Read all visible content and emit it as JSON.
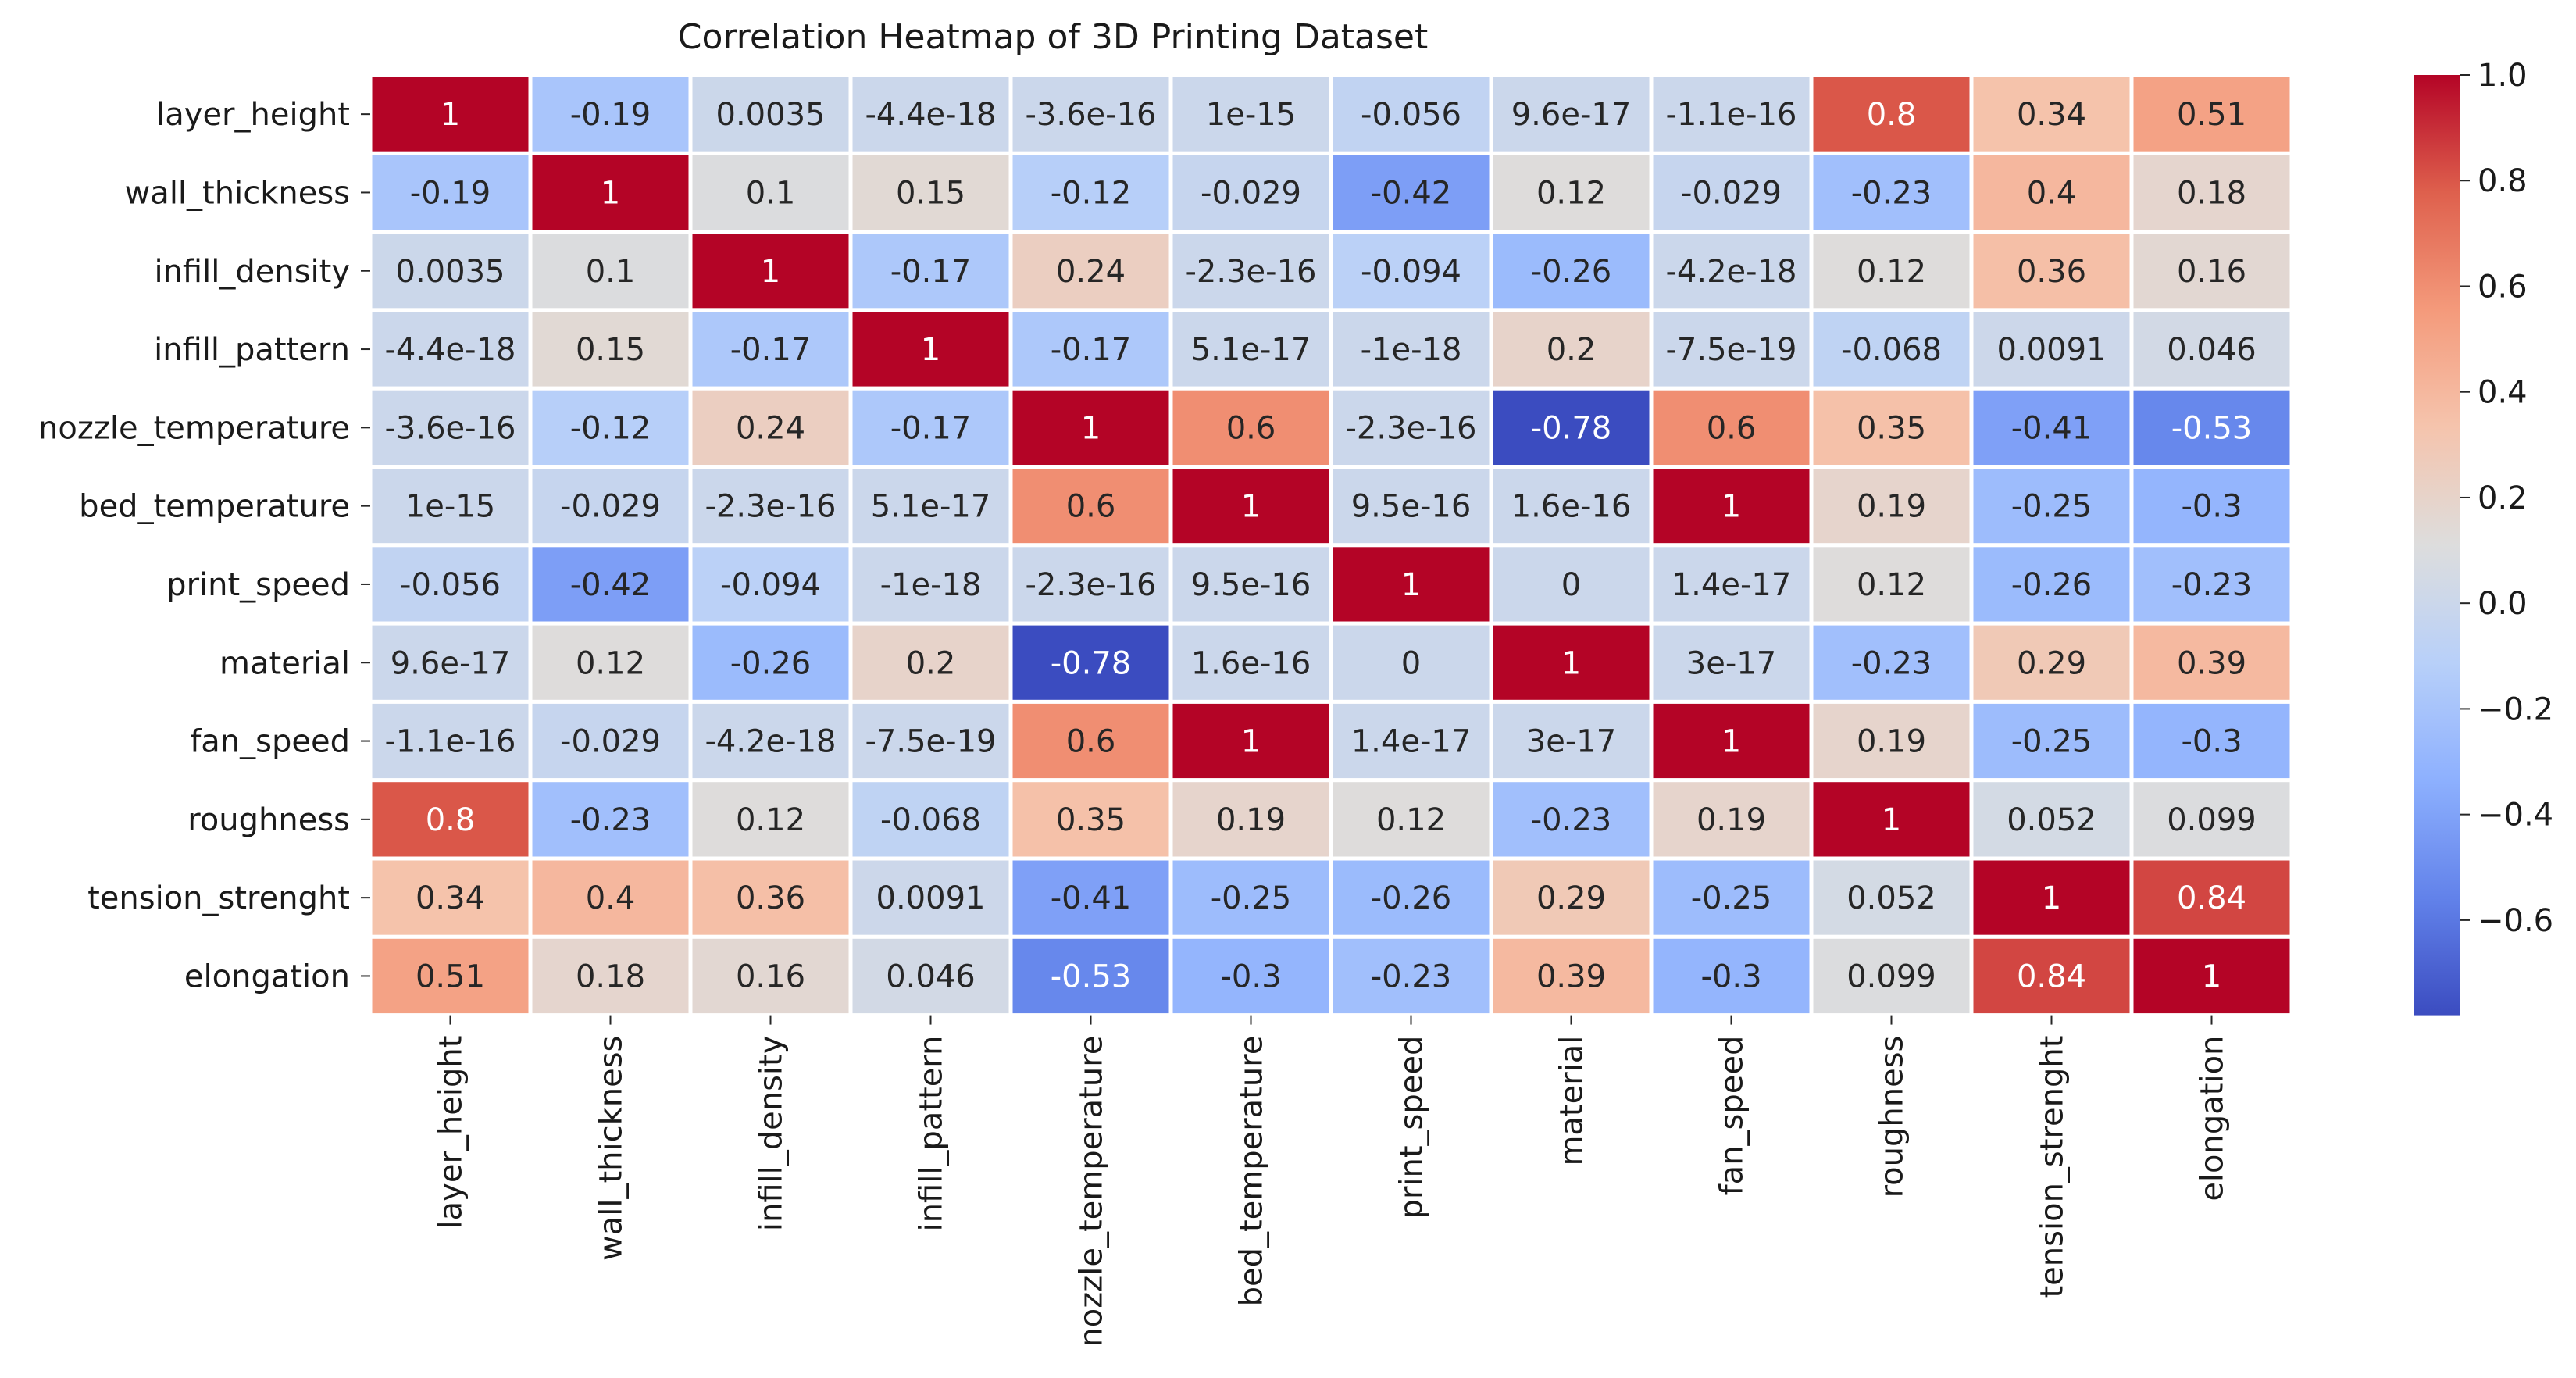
{
  "chart_data": {
    "type": "heatmap",
    "title": "Correlation Heatmap of 3D Printing Dataset",
    "xlabel": "",
    "ylabel": "",
    "rows": [
      "layer_height",
      "wall_thickness",
      "infill_density",
      "infill_pattern",
      "nozzle_temperature",
      "bed_temperature",
      "print_speed",
      "material",
      "fan_speed",
      "roughness",
      "tension_strenght",
      "elongation"
    ],
    "columns": [
      "layer_height",
      "wall_thickness",
      "infill_density",
      "infill_pattern",
      "nozzle_temperature",
      "bed_temperature",
      "print_speed",
      "material",
      "fan_speed",
      "roughness",
      "tension_strenght",
      "elongation"
    ],
    "values": [
      [
        1,
        -0.19,
        0.0035,
        -4.4e-18,
        -3.6e-16,
        1e-15,
        -0.056,
        9.6e-17,
        -1.1e-16,
        0.8,
        0.34,
        0.51
      ],
      [
        -0.19,
        1,
        0.1,
        0.15,
        -0.12,
        -0.029,
        -0.42,
        0.12,
        -0.029,
        -0.23,
        0.4,
        0.18
      ],
      [
        0.0035,
        0.1,
        1,
        -0.17,
        0.24,
        -2.3e-16,
        -0.094,
        -0.26,
        -4.2e-18,
        0.12,
        0.36,
        0.16
      ],
      [
        -4.4e-18,
        0.15,
        -0.17,
        1,
        -0.17,
        5.1e-17,
        -1e-18,
        0.2,
        -7.5e-19,
        -0.068,
        0.0091,
        0.046
      ],
      [
        -3.6e-16,
        -0.12,
        0.24,
        -0.17,
        1,
        0.6,
        -2.3e-16,
        -0.78,
        0.6,
        0.35,
        -0.41,
        -0.53
      ],
      [
        1e-15,
        -0.029,
        -2.3e-16,
        5.1e-17,
        0.6,
        1,
        9.5e-16,
        1.6e-16,
        1,
        0.19,
        -0.25,
        -0.3
      ],
      [
        -0.056,
        -0.42,
        -0.094,
        -1e-18,
        -2.3e-16,
        9.5e-16,
        1,
        0,
        1.4e-17,
        0.12,
        -0.26,
        -0.23
      ],
      [
        9.6e-17,
        0.12,
        -0.26,
        0.2,
        -0.78,
        1.6e-16,
        0,
        1,
        3e-17,
        -0.23,
        0.29,
        0.39
      ],
      [
        -1.1e-16,
        -0.029,
        -4.2e-18,
        -7.5e-19,
        0.6,
        1,
        1.4e-17,
        3e-17,
        1,
        0.19,
        -0.25,
        -0.3
      ],
      [
        0.8,
        -0.23,
        0.12,
        -0.068,
        0.35,
        0.19,
        0.12,
        -0.23,
        0.19,
        1,
        0.052,
        0.099
      ],
      [
        0.34,
        0.4,
        0.36,
        0.0091,
        -0.41,
        -0.25,
        -0.26,
        0.29,
        -0.25,
        0.052,
        1,
        0.84
      ],
      [
        0.51,
        0.18,
        0.16,
        0.046,
        -0.53,
        -0.3,
        -0.23,
        0.39,
        -0.3,
        0.099,
        0.84,
        1
      ]
    ],
    "annotations": [
      [
        "1",
        "-0.19",
        "0.0035",
        "-4.4e-18",
        "-3.6e-16",
        "1e-15",
        "-0.056",
        "9.6e-17",
        "-1.1e-16",
        "0.8",
        "0.34",
        "0.51"
      ],
      [
        "-0.19",
        "1",
        "0.1",
        "0.15",
        "-0.12",
        "-0.029",
        "-0.42",
        "0.12",
        "-0.029",
        "-0.23",
        "0.4",
        "0.18"
      ],
      [
        "0.0035",
        "0.1",
        "1",
        "-0.17",
        "0.24",
        "-2.3e-16",
        "-0.094",
        "-0.26",
        "-4.2e-18",
        "0.12",
        "0.36",
        "0.16"
      ],
      [
        "-4.4e-18",
        "0.15",
        "-0.17",
        "1",
        "-0.17",
        "5.1e-17",
        "-1e-18",
        "0.2",
        "-7.5e-19",
        "-0.068",
        "0.0091",
        "0.046"
      ],
      [
        "-3.6e-16",
        "-0.12",
        "0.24",
        "-0.17",
        "1",
        "0.6",
        "-2.3e-16",
        "-0.78",
        "0.6",
        "0.35",
        "-0.41",
        "-0.53"
      ],
      [
        "1e-15",
        "-0.029",
        "-2.3e-16",
        "5.1e-17",
        "0.6",
        "1",
        "9.5e-16",
        "1.6e-16",
        "1",
        "0.19",
        "-0.25",
        "-0.3"
      ],
      [
        "-0.056",
        "-0.42",
        "-0.094",
        "-1e-18",
        "-2.3e-16",
        "9.5e-16",
        "1",
        "0",
        "1.4e-17",
        "0.12",
        "-0.26",
        "-0.23"
      ],
      [
        "9.6e-17",
        "0.12",
        "-0.26",
        "0.2",
        "-0.78",
        "1.6e-16",
        "0",
        "1",
        "3e-17",
        "-0.23",
        "0.29",
        "0.39"
      ],
      [
        "-1.1e-16",
        "-0.029",
        "-4.2e-18",
        "-7.5e-19",
        "0.6",
        "1",
        "1.4e-17",
        "3e-17",
        "1",
        "0.19",
        "-0.25",
        "-0.3"
      ],
      [
        "0.8",
        "-0.23",
        "0.12",
        "-0.068",
        "0.35",
        "0.19",
        "0.12",
        "-0.23",
        "0.19",
        "1",
        "0.052",
        "0.099"
      ],
      [
        "0.34",
        "0.4",
        "0.36",
        "0.0091",
        "-0.41",
        "-0.25",
        "-0.26",
        "0.29",
        "-0.25",
        "0.052",
        "1",
        "0.84"
      ],
      [
        "0.51",
        "0.18",
        "0.16",
        "0.046",
        "-0.53",
        "-0.3",
        "-0.23",
        "0.39",
        "-0.3",
        "0.099",
        "0.84",
        "1"
      ]
    ],
    "colormap": "coolwarm",
    "vmin": -0.78,
    "vmax": 1,
    "colorbar_ticks": [
      1.0,
      0.8,
      0.6,
      0.4,
      0.2,
      0.0,
      -0.2,
      -0.4,
      -0.6
    ],
    "colorbar_tick_labels": [
      "1.0",
      "0.8",
      "0.6",
      "0.4",
      "0.2",
      "0.0",
      "−0.2",
      "−0.4",
      "−0.6"
    ],
    "grid": false,
    "legend": "colorbar-right"
  }
}
